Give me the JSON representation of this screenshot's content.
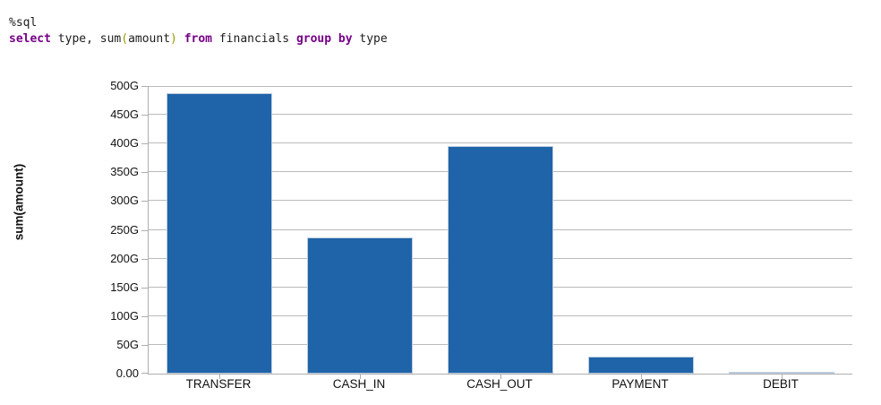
{
  "code": {
    "magic_line": "%sql",
    "query_tokens": [
      {
        "text": "select",
        "style": "keyword"
      },
      {
        "text": " type, sum",
        "style": "plain"
      },
      {
        "text": "(",
        "style": "bracket"
      },
      {
        "text": "amount",
        "style": "plain"
      },
      {
        "text": ")",
        "style": "bracket"
      },
      {
        "text": " ",
        "style": "plain"
      },
      {
        "text": "from",
        "style": "keyword"
      },
      {
        "text": " financials ",
        "style": "plain"
      },
      {
        "text": "group",
        "style": "keyword"
      },
      {
        "text": " ",
        "style": "plain"
      },
      {
        "text": "by",
        "style": "keyword"
      },
      {
        "text": " type",
        "style": "plain"
      }
    ]
  },
  "colors": {
    "keyword": "#770088",
    "bracket": "#999900",
    "code_text": "#1c1c1c",
    "bar": "#1f63a8",
    "bar_edge": "#bccde0",
    "grid": "#bbbbbb",
    "axis": "#aeaeae",
    "label": "#111111"
  },
  "chart_data": {
    "type": "bar",
    "title": "",
    "xlabel": "",
    "ylabel": "sum(amount)",
    "categories": [
      "TRANSFER",
      "CASH_IN",
      "CASH_OUT",
      "PAYMENT",
      "DEBIT"
    ],
    "values": [
      487,
      237,
      396,
      29,
      1
    ],
    "unit": "G",
    "ylim": [
      0,
      500
    ],
    "ytick_step": 50,
    "ytick_labels": [
      "0.00",
      "50G",
      "100G",
      "150G",
      "200G",
      "250G",
      "300G",
      "350G",
      "400G",
      "450G",
      "500G"
    ],
    "grid": "horizontal-only",
    "legend": "none"
  }
}
